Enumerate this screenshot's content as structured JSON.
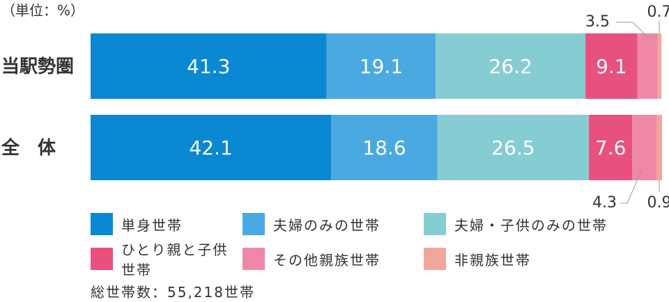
{
  "chart_data": {
    "type": "bar",
    "orientation": "horizontal",
    "stacked": true,
    "unit_label": "（単位：%）",
    "categories": [
      "当駅勢圏",
      "全　体"
    ],
    "series": [
      {
        "name": "単身世帯",
        "color": "#0a88d2",
        "values": [
          41.3,
          42.1
        ]
      },
      {
        "name": "夫婦のみの世帯",
        "color": "#4ba9e1",
        "values": [
          19.1,
          18.6
        ]
      },
      {
        "name": "夫婦・子供のみの世帯",
        "color": "#86cdd3",
        "values": [
          26.2,
          26.5
        ]
      },
      {
        "name": "ひとり親と子供世帯",
        "color": "#e8507e",
        "values": [
          9.1,
          7.6
        ]
      },
      {
        "name": "その他親族世帯",
        "color": "#ee88a6",
        "values": [
          3.5,
          4.3
        ]
      },
      {
        "name": "非親族世帯",
        "color": "#f2a69a",
        "values": [
          0.7,
          0.9
        ]
      }
    ],
    "data_labels": [
      [
        "41.3",
        "19.1",
        "26.2",
        "9.1",
        "3.5",
        "0.7"
      ],
      [
        "42.1",
        "18.6",
        "26.5",
        "7.6",
        "4.3",
        "0.9"
      ]
    ],
    "xlim": [
      0,
      100
    ],
    "grid": false,
    "legend_position": "bottom"
  },
  "total_note": "総世帯数：55,218世帯"
}
